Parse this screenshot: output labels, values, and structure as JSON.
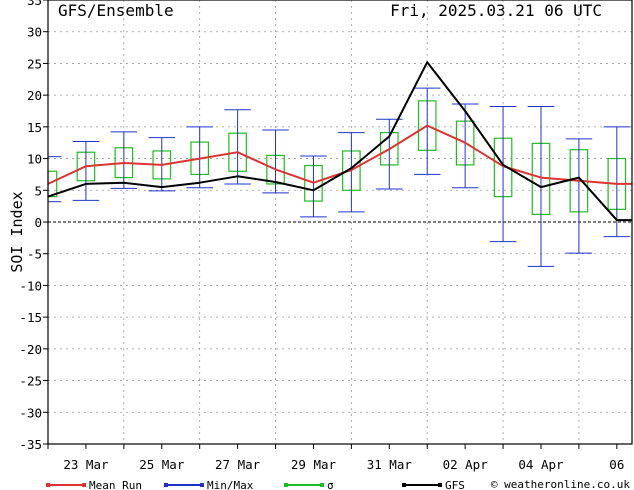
{
  "header": {
    "title": "GFS/Ensemble",
    "run_time": "Fri, 2025.03.21   06 UTC"
  },
  "credit": "© weatheronline.co.uk",
  "colors": {
    "mean": "#dd3333",
    "minmax": "#2233cc",
    "sigma": "#22bb22",
    "gfs": "#000000"
  },
  "chart_data": {
    "type": "line",
    "title": "",
    "ylabel": "SOI Index",
    "xlabel": "",
    "ylim": [
      -35,
      35
    ],
    "yticks": [
      35,
      30,
      25,
      20,
      15,
      10,
      5,
      0,
      -5,
      -10,
      -15,
      -20,
      -25,
      -30,
      -35
    ],
    "grid": true,
    "legend_placement": "bottom",
    "xlim": [
      0,
      15.4
    ],
    "x_tick_labels": [
      {
        "x": 1,
        "label": "23 Mar"
      },
      {
        "x": 3,
        "label": "25 Mar"
      },
      {
        "x": 5,
        "label": "27 Mar"
      },
      {
        "x": 7,
        "label": "29 Mar"
      },
      {
        "x": 9,
        "label": "31 Mar"
      },
      {
        "x": 11,
        "label": "02 Apr"
      },
      {
        "x": 13,
        "label": "04 Apr"
      },
      {
        "x": 15,
        "label": "06"
      }
    ],
    "legend": [
      {
        "key": "mean",
        "label": "Mean Run"
      },
      {
        "key": "minmax",
        "label": "Min/Max"
      },
      {
        "key": "sigma",
        "label": "σ"
      },
      {
        "key": "gfs",
        "label": "GFS"
      }
    ],
    "x": [
      0,
      1,
      2,
      3,
      4,
      5,
      6,
      7,
      8,
      9,
      10,
      11,
      12,
      13,
      14,
      15,
      15.4
    ],
    "series": [
      {
        "name": "Mean Run",
        "key": "mean",
        "values": [
          6,
          8.8,
          9.3,
          9.0,
          10.0,
          11.0,
          8.3,
          6.2,
          8.2,
          11.5,
          15.2,
          12.5,
          8.8,
          7.0,
          6.5,
          6.0,
          6.0
        ]
      },
      {
        "name": "GFS",
        "key": "gfs",
        "values": [
          4,
          6.0,
          6.2,
          5.5,
          6.2,
          7.2,
          6.3,
          5.0,
          8.5,
          13.5,
          25.2,
          17.5,
          9.0,
          5.5,
          7.0,
          0.3,
          0.3
        ]
      }
    ],
    "sigma": [
      {
        "x": 0,
        "lo": 4.0,
        "hi": 8.0
      },
      {
        "x": 1,
        "lo": 6.5,
        "hi": 11.0
      },
      {
        "x": 2,
        "lo": 7.0,
        "hi": 11.7
      },
      {
        "x": 3,
        "lo": 6.8,
        "hi": 11.2
      },
      {
        "x": 4,
        "lo": 7.5,
        "hi": 12.6
      },
      {
        "x": 5,
        "lo": 8.0,
        "hi": 14.0
      },
      {
        "x": 6,
        "lo": 6.0,
        "hi": 10.5
      },
      {
        "x": 7,
        "lo": 3.3,
        "hi": 8.9
      },
      {
        "x": 8,
        "lo": 5.0,
        "hi": 11.2
      },
      {
        "x": 9,
        "lo": 9.0,
        "hi": 14.1
      },
      {
        "x": 10,
        "lo": 11.3,
        "hi": 19.1
      },
      {
        "x": 11,
        "lo": 9.0,
        "hi": 15.9
      },
      {
        "x": 12,
        "lo": 4.0,
        "hi": 13.2
      },
      {
        "x": 13,
        "lo": 1.2,
        "hi": 12.4
      },
      {
        "x": 14,
        "lo": 1.6,
        "hi": 11.4
      },
      {
        "x": 15,
        "lo": 2.0,
        "hi": 10.0
      }
    ],
    "minmax": [
      {
        "x": 0,
        "min": 3.2,
        "max": 10.3
      },
      {
        "x": 1,
        "min": 3.4,
        "max": 12.7
      },
      {
        "x": 2,
        "min": 5.3,
        "max": 14.2
      },
      {
        "x": 3,
        "min": 4.9,
        "max": 13.3
      },
      {
        "x": 4,
        "min": 5.4,
        "max": 15.0
      },
      {
        "x": 5,
        "min": 6.0,
        "max": 17.7
      },
      {
        "x": 6,
        "min": 4.6,
        "max": 14.5
      },
      {
        "x": 7,
        "min": 0.8,
        "max": 10.4
      },
      {
        "x": 8,
        "min": 1.6,
        "max": 14.1
      },
      {
        "x": 9,
        "min": 5.2,
        "max": 16.2
      },
      {
        "x": 10,
        "min": 7.5,
        "max": 21.1
      },
      {
        "x": 11,
        "min": 5.4,
        "max": 18.6
      },
      {
        "x": 12,
        "min": -3.1,
        "max": 18.2
      },
      {
        "x": 13,
        "min": -7.0,
        "max": 18.2
      },
      {
        "x": 14,
        "min": -4.9,
        "max": 13.1
      },
      {
        "x": 15,
        "min": -2.3,
        "max": 15.0
      }
    ]
  }
}
